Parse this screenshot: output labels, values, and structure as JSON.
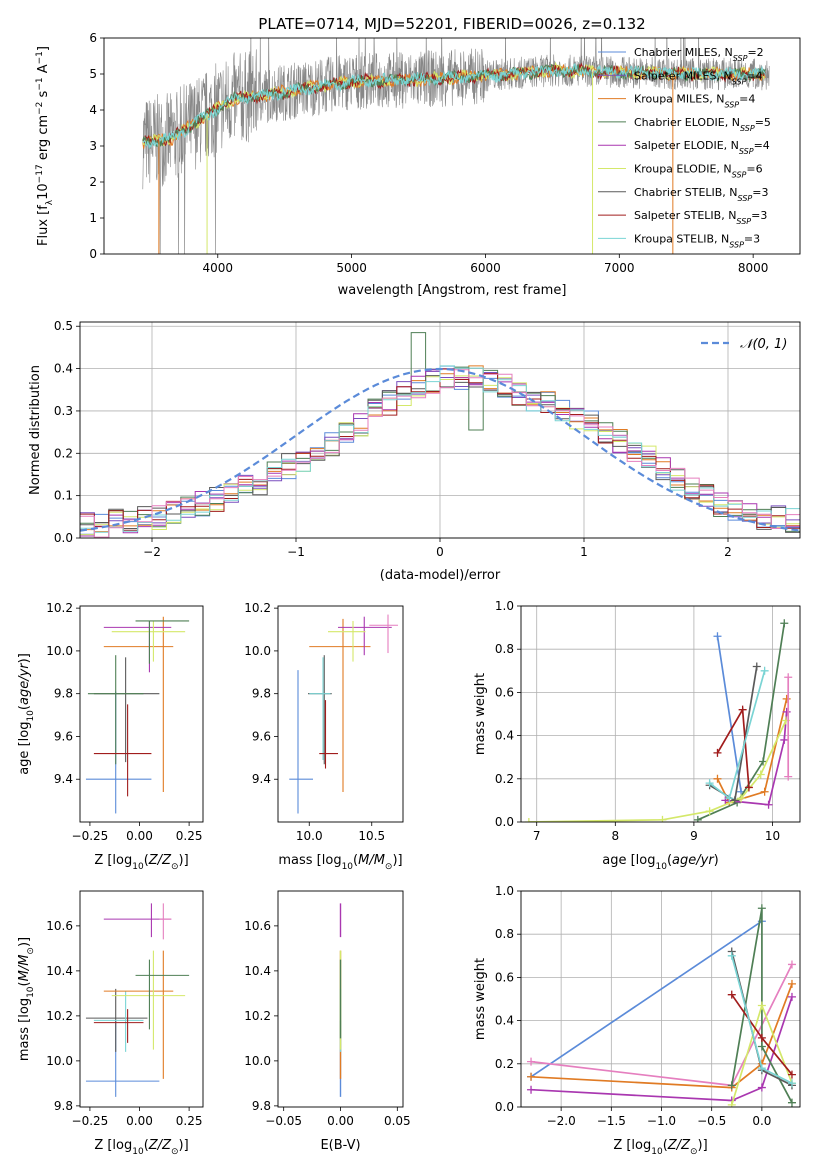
{
  "colors": {
    "chabrier_miles": "#5b8bd9",
    "salpeter_miles": "#7a4fbf",
    "kroupa_miles": "#e07b24",
    "chabrier_elodie": "#4f7f55",
    "salpeter_elodie": "#a937b0",
    "kroupa_elodie": "#d4e86a",
    "chabrier_stelib": "#5a5a5a",
    "salpeter_stelib": "#a11d1d",
    "kroupa_stelib": "#7ad4d4",
    "pink": "#e57fbf",
    "data_grey": "#888888",
    "grid": "#b0b0b0"
  },
  "chart_data": [
    {
      "id": "spectrum",
      "type": "line",
      "title": "PLATE=0714, MJD=52201, FIBERID=0026, z=0.132",
      "xlabel": "wavelength [Angstrom, rest frame]",
      "ylabel": "Flux [f",
      "ylabel_full": "Flux [fλ10⁻¹⁷ erg cm⁻² s⁻¹ A⁻¹]",
      "xlim": [
        3150,
        8350
      ],
      "ylim": [
        0,
        6
      ],
      "xticks": [
        4000,
        5000,
        6000,
        7000,
        8000
      ],
      "yticks": [
        0,
        1,
        2,
        3,
        4,
        5,
        6
      ],
      "legend_position": "top-right",
      "legend": [
        {
          "name": "Chabrier MILES, N",
          "sub": "SSP",
          "tail": "=2",
          "color": "chabrier_miles"
        },
        {
          "name": "Salpeter MILES, N",
          "sub": "SSP",
          "tail": "=4",
          "color": "salpeter_miles"
        },
        {
          "name": "Kroupa MILES, N",
          "sub": "SSP",
          "tail": "=4",
          "color": "kroupa_miles"
        },
        {
          "name": "Chabrier ELODIE, N",
          "sub": "SSP",
          "tail": "=5",
          "color": "chabrier_elodie"
        },
        {
          "name": "Salpeter ELODIE, N",
          "sub": "SSP",
          "tail": "=4",
          "color": "salpeter_elodie"
        },
        {
          "name": "Kroupa ELODIE, N",
          "sub": "SSP",
          "tail": "=6",
          "color": "kroupa_elodie"
        },
        {
          "name": "Chabrier STELIB, N",
          "sub": "SSP",
          "tail": "=3",
          "color": "chabrier_stelib"
        },
        {
          "name": "Salpeter STELIB, N",
          "sub": "SSP",
          "tail": "=3",
          "color": "salpeter_stelib"
        },
        {
          "name": "Kroupa STELIB, N",
          "sub": "SSP",
          "tail": "=3",
          "color": "kroupa_stelib"
        }
      ],
      "data_range": [
        3440,
        8120
      ],
      "continuum": [
        [
          3440,
          3.1
        ],
        [
          3650,
          3.2
        ],
        [
          3900,
          3.8
        ],
        [
          4100,
          4.3
        ],
        [
          4500,
          4.5
        ],
        [
          5000,
          4.8
        ],
        [
          5500,
          4.85
        ],
        [
          6000,
          4.95
        ],
        [
          6500,
          5.1
        ],
        [
          7000,
          5.05
        ],
        [
          7500,
          5.0
        ],
        [
          8000,
          5.0
        ]
      ]
    },
    {
      "id": "residuals",
      "type": "histogram",
      "xlabel": "(data-model)/error",
      "ylabel": "Normed distribution",
      "xlim": [
        -2.5,
        2.5
      ],
      "ylim": [
        0,
        0.51
      ],
      "xticks": [
        -2,
        -1,
        0,
        1,
        2
      ],
      "xtick_labels": [
        "−2",
        "−1",
        "0",
        "1",
        "2"
      ],
      "yticks": [
        0.0,
        0.1,
        0.2,
        0.3,
        0.4,
        0.5
      ],
      "grid": true,
      "legend_label": "𝒩(0, 1)",
      "legend_position": "top-right",
      "bin_width": 0.1,
      "bin_start": -2.5,
      "envelope": [
        0.03,
        0.03,
        0.04,
        0.04,
        0.05,
        0.05,
        0.06,
        0.07,
        0.08,
        0.09,
        0.11,
        0.12,
        0.13,
        0.15,
        0.17,
        0.18,
        0.2,
        0.22,
        0.25,
        0.27,
        0.3,
        0.32,
        0.34,
        0.36,
        0.37,
        0.38,
        0.38,
        0.38,
        0.37,
        0.36,
        0.34,
        0.33,
        0.32,
        0.3,
        0.28,
        0.27,
        0.25,
        0.23,
        0.21,
        0.19,
        0.16,
        0.14,
        0.12,
        0.1,
        0.08,
        0.07,
        0.06,
        0.05,
        0.05,
        0.04
      ]
    },
    {
      "id": "age_vs_Z",
      "type": "errorbar",
      "xlabel": "Z [log",
      "xlabel_full": "Z [log10(Z/Z⊙)]",
      "ylabel": "age  [log",
      "ylabel_full": "age  [log10(age/yr)]",
      "xlim": [
        -0.3,
        0.32
      ],
      "ylim": [
        9.2,
        10.21
      ],
      "xticks": [
        -0.25,
        0.0,
        0.25
      ],
      "xtick_labels": [
        "−0.25",
        "0.00",
        "0.25"
      ],
      "yticks": [
        9.4,
        9.6,
        9.8,
        10.0,
        10.2
      ],
      "points": [
        {
          "x": -0.12,
          "y": 9.4,
          "xe": [
            -0.27,
            0.06
          ],
          "ye": [
            9.24,
            9.81
          ],
          "color": "chabrier_miles"
        },
        {
          "x": -0.07,
          "y": 9.8,
          "xe": [
            -0.23,
            0.1
          ],
          "ye": [
            9.48,
            9.97
          ],
          "color": "chabrier_stelib"
        },
        {
          "x": -0.12,
          "y": 9.8,
          "xe": [
            -0.26,
            0.02
          ],
          "ye": [
            9.47,
            9.98
          ],
          "color": "chabrier_elodie"
        },
        {
          "x": -0.06,
          "y": 9.52,
          "xe": [
            -0.23,
            0.06
          ],
          "ye": [
            9.32,
            9.75
          ],
          "color": "salpeter_stelib"
        },
        {
          "x": 0.12,
          "y": 10.02,
          "xe": [
            -0.18,
            0.17
          ],
          "ye": [
            9.34,
            10.16
          ],
          "color": "kroupa_miles"
        },
        {
          "x": 0.05,
          "y": 10.11,
          "xe": [
            -0.18,
            0.16
          ],
          "ye": [
            9.9,
            10.14
          ],
          "color": "salpeter_elodie"
        },
        {
          "x": 0.07,
          "y": 10.09,
          "xe": [
            -0.14,
            0.23
          ],
          "ye": [
            9.95,
            10.14
          ],
          "color": "kroupa_elodie"
        },
        {
          "x": 0.05,
          "y": 10.14,
          "xe": [
            -0.02,
            0.25
          ],
          "ye": [
            9.94,
            10.14
          ],
          "color": "chabrier_elodie"
        }
      ]
    },
    {
      "id": "age_vs_mass",
      "type": "errorbar",
      "xlabel": "mass [log",
      "xlabel_full": "mass [log10(M/M⊙)]",
      "xlim": [
        9.75,
        10.75
      ],
      "ylim": [
        9.2,
        10.21
      ],
      "xticks": [
        10.0,
        10.5
      ],
      "xtick_labels": [
        "10.0",
        "10.5"
      ],
      "yticks": [
        9.4,
        9.6,
        9.8,
        10.0,
        10.2
      ],
      "points": [
        {
          "x": 9.91,
          "y": 9.4,
          "xe": [
            9.84,
            10.03
          ],
          "ye": [
            9.24,
            9.91
          ],
          "color": "chabrier_miles"
        },
        {
          "x": 10.12,
          "y": 9.8,
          "xe": [
            9.99,
            10.18
          ],
          "ye": [
            9.47,
            9.98
          ],
          "color": "chabrier_stelib"
        },
        {
          "x": 10.11,
          "y": 9.8,
          "xe": [
            10.0,
            10.17
          ],
          "ye": [
            9.49,
            9.97
          ],
          "color": "kroupa_stelib"
        },
        {
          "x": 10.13,
          "y": 9.52,
          "xe": [
            10.08,
            10.23
          ],
          "ye": [
            9.45,
            9.77
          ],
          "color": "salpeter_stelib"
        },
        {
          "x": 10.27,
          "y": 10.02,
          "xe": [
            10.0,
            10.49
          ],
          "ye": [
            9.34,
            10.15
          ],
          "color": "kroupa_miles"
        },
        {
          "x": 10.44,
          "y": 10.11,
          "xe": [
            10.23,
            10.66
          ],
          "ye": [
            9.98,
            10.16
          ],
          "color": "salpeter_elodie"
        },
        {
          "x": 10.63,
          "y": 10.12,
          "xe": [
            10.48,
            10.71
          ],
          "ye": [
            9.99,
            10.17
          ],
          "color": "pink"
        },
        {
          "x": 10.35,
          "y": 10.09,
          "xe": [
            10.15,
            10.45
          ],
          "ye": [
            9.95,
            10.14
          ],
          "color": "kroupa_elodie"
        }
      ]
    },
    {
      "id": "weight_vs_age",
      "type": "line",
      "xlabel": "age  [log",
      "xlabel_full": "age  [log10(age/yr)]",
      "ylabel": "mass weight",
      "xlim": [
        6.8,
        10.35
      ],
      "ylim": [
        0,
        1.0
      ],
      "xticks": [
        7,
        8,
        9,
        10
      ],
      "yticks": [
        0.0,
        0.2,
        0.4,
        0.6,
        0.8,
        1.0
      ],
      "grid": true,
      "series": [
        {
          "color": "chabrier_miles",
          "points": [
            [
              9.3,
              0.86
            ],
            [
              9.6,
              0.14
            ]
          ]
        },
        {
          "color": "kroupa_miles",
          "points": [
            [
              9.3,
              0.2
            ],
            [
              9.45,
              0.09
            ],
            [
              9.9,
              0.14
            ],
            [
              10.18,
              0.57
            ]
          ]
        },
        {
          "color": "chabrier_elodie",
          "points": [
            [
              9.05,
              0.01
            ],
            [
              9.55,
              0.09
            ],
            [
              9.88,
              0.28
            ],
            [
              10.15,
              0.92
            ]
          ]
        },
        {
          "color": "salpeter_elodie",
          "points": [
            [
              9.4,
              0.1
            ],
            [
              9.95,
              0.08
            ],
            [
              10.15,
              0.38
            ],
            [
              10.18,
              0.51
            ]
          ]
        },
        {
          "color": "kroupa_elodie",
          "points": [
            [
              6.9,
              0.0
            ],
            [
              8.6,
              0.01
            ],
            [
              9.2,
              0.05
            ],
            [
              9.6,
              0.11
            ],
            [
              9.85,
              0.22
            ],
            [
              10.17,
              0.47
            ]
          ]
        },
        {
          "color": "chabrier_stelib",
          "points": [
            [
              9.2,
              0.17
            ],
            [
              9.52,
              0.1
            ],
            [
              9.8,
              0.72
            ]
          ]
        },
        {
          "color": "salpeter_stelib",
          "points": [
            [
              9.3,
              0.32
            ],
            [
              9.62,
              0.52
            ],
            [
              9.7,
              0.16
            ]
          ]
        },
        {
          "color": "kroupa_stelib",
          "points": [
            [
              9.2,
              0.18
            ],
            [
              9.45,
              0.11
            ],
            [
              9.9,
              0.7
            ]
          ]
        },
        {
          "color": "pink",
          "points": [
            [
              10.2,
              0.67
            ],
            [
              10.2,
              0.21
            ]
          ]
        }
      ]
    },
    {
      "id": "mass_vs_Z",
      "type": "errorbar",
      "xlabel": "Z [log",
      "xlabel_full": "Z [log10(Z/Z⊙)]",
      "ylabel": "mass [log",
      "ylabel_full": "mass [log10(M/M⊙)]",
      "xlim": [
        -0.3,
        0.32
      ],
      "ylim": [
        9.795,
        10.755
      ],
      "xticks": [
        -0.25,
        0.0,
        0.25
      ],
      "xtick_labels": [
        "−0.25",
        "0.00",
        "0.25"
      ],
      "yticks": [
        9.8,
        10.0,
        10.2,
        10.4,
        10.6
      ],
      "points": [
        {
          "x": -0.12,
          "y": 9.91,
          "xe": [
            -0.27,
            0.1
          ],
          "ye": [
            9.84,
            10.18
          ],
          "color": "chabrier_miles"
        },
        {
          "x": -0.12,
          "y": 10.19,
          "xe": [
            -0.27,
            0.04
          ],
          "ye": [
            10.04,
            10.32
          ],
          "color": "chabrier_stelib"
        },
        {
          "x": -0.07,
          "y": 10.18,
          "xe": [
            -0.23,
            0.02
          ],
          "ye": [
            10.04,
            10.31
          ],
          "color": "kroupa_stelib"
        },
        {
          "x": -0.06,
          "y": 10.17,
          "xe": [
            -0.23,
            0.02
          ],
          "ye": [
            10.08,
            10.23
          ],
          "color": "salpeter_stelib"
        },
        {
          "x": 0.12,
          "y": 10.31,
          "xe": [
            -0.18,
            0.17
          ],
          "ye": [
            9.92,
            10.49
          ],
          "color": "kroupa_miles"
        },
        {
          "x": 0.06,
          "y": 10.63,
          "xe": [
            -0.18,
            0.16
          ],
          "ye": [
            10.55,
            10.7
          ],
          "color": "salpeter_elodie"
        },
        {
          "x": 0.12,
          "y": 10.63,
          "xe": [
            0.1,
            0.16
          ],
          "ye": [
            10.54,
            10.7
          ],
          "color": "pink"
        },
        {
          "x": 0.07,
          "y": 10.29,
          "xe": [
            -0.14,
            0.23
          ],
          "ye": [
            10.05,
            10.49
          ],
          "color": "kroupa_elodie"
        },
        {
          "x": 0.05,
          "y": 10.38,
          "xe": [
            -0.02,
            0.25
          ],
          "ye": [
            10.14,
            10.45
          ],
          "color": "chabrier_elodie"
        }
      ]
    },
    {
      "id": "mass_vs_EBV",
      "type": "errorbar",
      "xlabel": "E(B-V)",
      "xlim": [
        -0.055,
        0.055
      ],
      "ylim": [
        9.795,
        10.755
      ],
      "xticks": [
        -0.05,
        0.0,
        0.05
      ],
      "xtick_labels": [
        "−0.05",
        "0.00",
        "0.05"
      ],
      "yticks": [
        9.8,
        10.0,
        10.2,
        10.4,
        10.6,
        10.8
      ],
      "segments": [
        {
          "x": 0.0,
          "ye": [
            9.84,
            10.18
          ],
          "color": "chabrier_miles"
        },
        {
          "x": 0.0,
          "ye": [
            9.92,
            10.49
          ],
          "color": "kroupa_miles"
        },
        {
          "x": 0.0,
          "ye": [
            10.04,
            10.32
          ],
          "color": "kroupa_stelib"
        },
        {
          "x": 0.0,
          "ye": [
            10.05,
            10.49
          ],
          "color": "kroupa_elodie"
        },
        {
          "x": 0.0,
          "ye": [
            10.1,
            10.45
          ],
          "color": "chabrier_elodie"
        },
        {
          "x": 0.0,
          "ye": [
            10.55,
            10.7
          ],
          "color": "salpeter_elodie"
        }
      ]
    },
    {
      "id": "weight_vs_Z",
      "type": "line",
      "xlabel": "Z [log",
      "xlabel_full": "Z [log10(Z/Z⊙)]",
      "ylabel": "mass weight",
      "xlim": [
        -2.4,
        0.38
      ],
      "ylim": [
        0,
        1.0
      ],
      "xticks": [
        -2.0,
        -1.5,
        -1.0,
        -0.5,
        0.0
      ],
      "xtick_labels": [
        "−2.0",
        "−1.5",
        "−1.0",
        "−0.5",
        "0.0"
      ],
      "yticks": [
        0.0,
        0.2,
        0.4,
        0.6,
        0.8,
        1.0
      ],
      "grid": true,
      "series": [
        {
          "color": "chabrier_miles",
          "points": [
            [
              -2.3,
              0.14
            ],
            [
              0.0,
              0.86
            ]
          ]
        },
        {
          "color": "kroupa_miles",
          "points": [
            [
              -2.3,
              0.14
            ],
            [
              -0.3,
              0.09
            ],
            [
              0.0,
              0.2
            ],
            [
              0.3,
              0.57
            ]
          ]
        },
        {
          "color": "pink",
          "points": [
            [
              -2.3,
              0.21
            ],
            [
              -0.3,
              0.1
            ],
            [
              0.3,
              0.66
            ]
          ]
        },
        {
          "color": "salpeter_elodie",
          "points": [
            [
              -2.3,
              0.08
            ],
            [
              -0.3,
              0.03
            ],
            [
              0.0,
              0.09
            ],
            [
              0.3,
              0.51
            ]
          ]
        },
        {
          "color": "chabrier_elodie",
          "points": [
            [
              -0.3,
              0.1
            ],
            [
              0.0,
              0.92
            ],
            [
              0.0,
              0.28
            ],
            [
              0.3,
              0.02
            ]
          ]
        },
        {
          "color": "kroupa_elodie",
          "points": [
            [
              -0.3,
              0.01
            ],
            [
              0.0,
              0.47
            ],
            [
              0.3,
              0.11
            ]
          ]
        },
        {
          "color": "chabrier_stelib",
          "points": [
            [
              -0.3,
              0.72
            ],
            [
              0.0,
              0.17
            ],
            [
              0.3,
              0.1
            ]
          ]
        },
        {
          "color": "salpeter_stelib",
          "points": [
            [
              -0.3,
              0.52
            ],
            [
              0.0,
              0.32
            ],
            [
              0.3,
              0.15
            ]
          ]
        },
        {
          "color": "kroupa_stelib",
          "points": [
            [
              -0.3,
              0.7
            ],
            [
              0.0,
              0.18
            ],
            [
              0.3,
              0.11
            ]
          ]
        }
      ]
    }
  ]
}
